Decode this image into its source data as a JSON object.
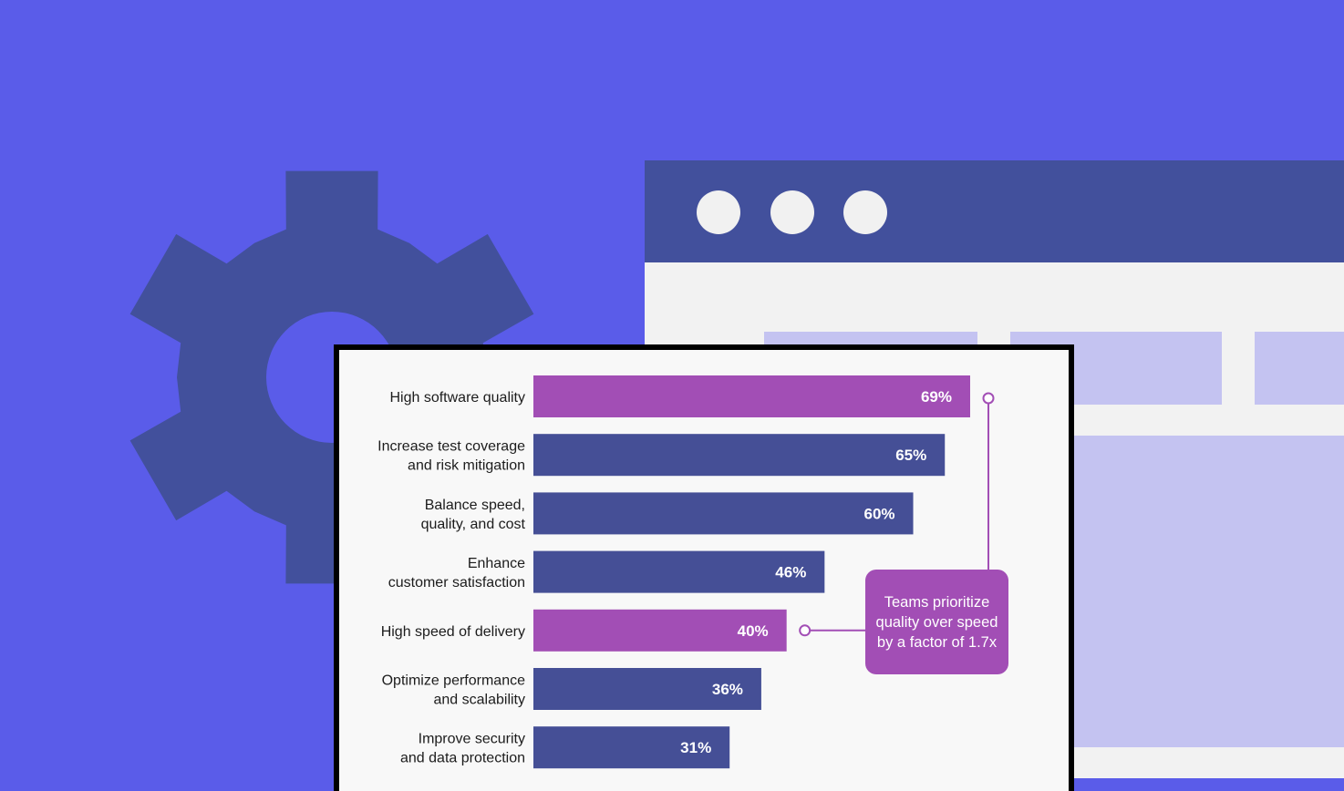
{
  "colors": {
    "background": "#5a5ce9",
    "gear": "#42509c",
    "browser_bar": "#42509c",
    "browser_body": "#f2f2f2",
    "browser_blocks": "#c4c3f1",
    "bar_default": "#454f96",
    "bar_highlight": "#a24eb5",
    "callout": "#a24eb5"
  },
  "icons": {
    "gear": "gear-icon",
    "window_dots": [
      "window-dot-icon",
      "window-dot-icon",
      "window-dot-icon"
    ]
  },
  "chart_data": {
    "type": "bar",
    "orientation": "horizontal",
    "categories": [
      [
        "High software quality"
      ],
      [
        "Increase test coverage",
        "and risk mitigation"
      ],
      [
        "Balance speed,",
        "quality, and cost"
      ],
      [
        "Enhance",
        "customer satisfaction"
      ],
      [
        "High speed of delivery"
      ],
      [
        "Optimize performance",
        "and scalability"
      ],
      [
        "Improve security",
        "and data protection"
      ]
    ],
    "values": [
      69,
      65,
      60,
      46,
      40,
      36,
      31
    ],
    "value_labels": [
      "69%",
      "65%",
      "60%",
      "46%",
      "40%",
      "36%",
      "31%"
    ],
    "highlighted": [
      0,
      4
    ],
    "xlim": [
      0,
      100
    ],
    "grid": false,
    "annotation": {
      "text": "Teams prioritize quality over speed by a factor of 1.7x",
      "connects": [
        0,
        4
      ]
    }
  }
}
